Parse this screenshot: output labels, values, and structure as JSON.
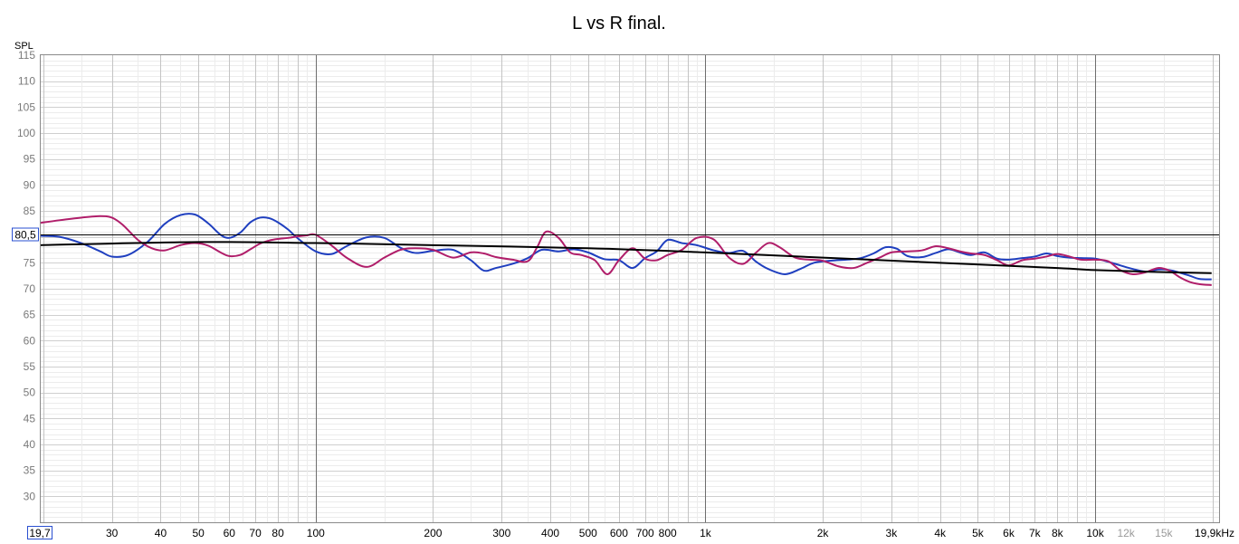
{
  "chart_data": {
    "type": "line",
    "title": "L vs R final.",
    "ylabel": "SPL",
    "xscale": "log",
    "xlim": [
      19.7,
      20800
    ],
    "ylim": [
      25,
      115
    ],
    "grid": true,
    "y_ticks": [
      115,
      110,
      105,
      100,
      95,
      90,
      85,
      80,
      75,
      70,
      65,
      60,
      55,
      50,
      45,
      40,
      35,
      30
    ],
    "x_ticks": [
      {
        "value": 30,
        "label": "30"
      },
      {
        "value": 40,
        "label": "40"
      },
      {
        "value": 50,
        "label": "50"
      },
      {
        "value": 60,
        "label": "60"
      },
      {
        "value": 70,
        "label": "70"
      },
      {
        "value": 80,
        "label": "80"
      },
      {
        "value": 100,
        "label": "100"
      },
      {
        "value": 200,
        "label": "200"
      },
      {
        "value": 300,
        "label": "300"
      },
      {
        "value": 400,
        "label": "400"
      },
      {
        "value": 500,
        "label": "500"
      },
      {
        "value": 600,
        "label": "600"
      },
      {
        "value": 700,
        "label": "700"
      },
      {
        "value": 800,
        "label": "800"
      },
      {
        "value": 1000,
        "label": "1k"
      },
      {
        "value": 2000,
        "label": "2k"
      },
      {
        "value": 3000,
        "label": "3k"
      },
      {
        "value": 4000,
        "label": "4k"
      },
      {
        "value": 5000,
        "label": "5k"
      },
      {
        "value": 6000,
        "label": "6k"
      },
      {
        "value": 7000,
        "label": "7k"
      },
      {
        "value": 8000,
        "label": "8k"
      },
      {
        "value": 10000,
        "label": "10k"
      },
      {
        "value": 12000,
        "label": "12k",
        "dim": true
      },
      {
        "value": 15000,
        "label": "15k",
        "dim": true
      }
    ],
    "x_start_label": "19,7",
    "x_end_label": "19,9kHz",
    "y_marker": {
      "value": 80.5,
      "label": "80,5"
    },
    "series": [
      {
        "color": "#1f3fbf",
        "x": [
          19.7,
          22,
          25,
          28,
          30,
          33,
          37,
          41,
          45,
          49,
          53,
          57,
          60,
          64,
          68,
          72,
          76,
          80,
          85,
          90,
          100,
          110,
          120,
          135,
          150,
          165,
          180,
          200,
          225,
          250,
          270,
          290,
          320,
          350,
          380,
          420,
          460,
          500,
          550,
          600,
          650,
          700,
          750,
          800,
          870,
          950,
          1050,
          1150,
          1250,
          1350,
          1450,
          1600,
          1750,
          1900,
          2100,
          2300,
          2500,
          2700,
          2900,
          3100,
          3300,
          3600,
          3900,
          4200,
          4500,
          4800,
          5200,
          5600,
          6000,
          6500,
          7000,
          7500,
          8000,
          8600,
          9200,
          10000,
          10800,
          11600,
          12500,
          13500,
          14500,
          15500,
          16500,
          17500,
          18500,
          19900
        ],
        "y": [
          80.2,
          80.0,
          78.8,
          77.2,
          76.2,
          76.5,
          79.0,
          82.5,
          84.2,
          84.3,
          82.6,
          80.4,
          79.8,
          80.8,
          82.8,
          83.7,
          83.6,
          82.8,
          81.4,
          79.7,
          77.2,
          76.7,
          78.2,
          79.9,
          79.8,
          77.9,
          76.9,
          77.3,
          77.5,
          75.5,
          73.5,
          74.0,
          74.8,
          75.9,
          77.5,
          77.2,
          77.6,
          77.0,
          75.7,
          75.5,
          74.0,
          75.9,
          77.2,
          79.4,
          78.8,
          78.4,
          77.4,
          76.9,
          77.3,
          75.2,
          73.8,
          72.8,
          73.8,
          75.0,
          75.4,
          75.6,
          75.9,
          76.8,
          78.0,
          77.7,
          76.3,
          76.1,
          76.9,
          77.6,
          77.0,
          76.5,
          77.0,
          75.8,
          75.6,
          75.9,
          76.2,
          76.8,
          76.3,
          76.0,
          75.9,
          75.8,
          75.2,
          74.5,
          73.8,
          73.3,
          73.7,
          73.6,
          73.1,
          72.5,
          71.9,
          71.8
        ]
      },
      {
        "color": "#b01e6a",
        "x": [
          19.7,
          22,
          25,
          28,
          30,
          32,
          35,
          38,
          41,
          45,
          49,
          53,
          57,
          60,
          64,
          68,
          72,
          76,
          80,
          85,
          90,
          95,
          100,
          110,
          120,
          135,
          150,
          165,
          180,
          200,
          225,
          250,
          270,
          290,
          320,
          350,
          370,
          390,
          420,
          450,
          480,
          520,
          560,
          600,
          650,
          700,
          750,
          800,
          870,
          950,
          1050,
          1150,
          1250,
          1350,
          1450,
          1550,
          1700,
          1850,
          2000,
          2200,
          2400,
          2600,
          2800,
          3000,
          3300,
          3600,
          3900,
          4200,
          4500,
          4800,
          5200,
          5600,
          6000,
          6500,
          7000,
          7500,
          8000,
          8600,
          9200,
          10000,
          10800,
          11600,
          12500,
          13500,
          14500,
          15500,
          16500,
          17500,
          18500,
          19900
        ],
        "y": [
          82.7,
          83.2,
          83.7,
          84.0,
          83.7,
          82.3,
          79.4,
          77.8,
          77.4,
          78.4,
          78.8,
          78.3,
          77.0,
          76.3,
          76.5,
          77.6,
          78.7,
          79.3,
          79.6,
          79.8,
          80.1,
          80.3,
          80.4,
          78.3,
          76.0,
          74.2,
          76.0,
          77.5,
          77.8,
          77.5,
          76.0,
          77.0,
          76.8,
          76.1,
          75.6,
          75.3,
          78.0,
          81.0,
          79.8,
          77.0,
          76.5,
          75.5,
          72.8,
          75.5,
          77.8,
          75.8,
          75.5,
          76.5,
          77.5,
          79.8,
          79.5,
          76.0,
          74.8,
          77.0,
          78.8,
          78.0,
          76.0,
          75.6,
          75.4,
          74.3,
          74.0,
          75.0,
          76.0,
          77.0,
          77.2,
          77.4,
          78.2,
          77.8,
          77.2,
          76.8,
          76.5,
          75.5,
          74.5,
          75.5,
          75.8,
          76.2,
          76.7,
          76.2,
          75.6,
          75.6,
          75.3,
          73.6,
          72.8,
          73.2,
          74.0,
          73.5,
          72.2,
          71.3,
          70.9,
          70.7
        ]
      },
      {
        "color": "#000000",
        "x": [
          19.7,
          50,
          100,
          200,
          500,
          1000,
          2000,
          4000,
          8000,
          10000,
          15000,
          19900
        ],
        "y": [
          78.4,
          79.0,
          78.8,
          78.4,
          77.8,
          77.0,
          76.0,
          75.0,
          74.0,
          73.6,
          73.2,
          73.0
        ]
      }
    ]
  }
}
